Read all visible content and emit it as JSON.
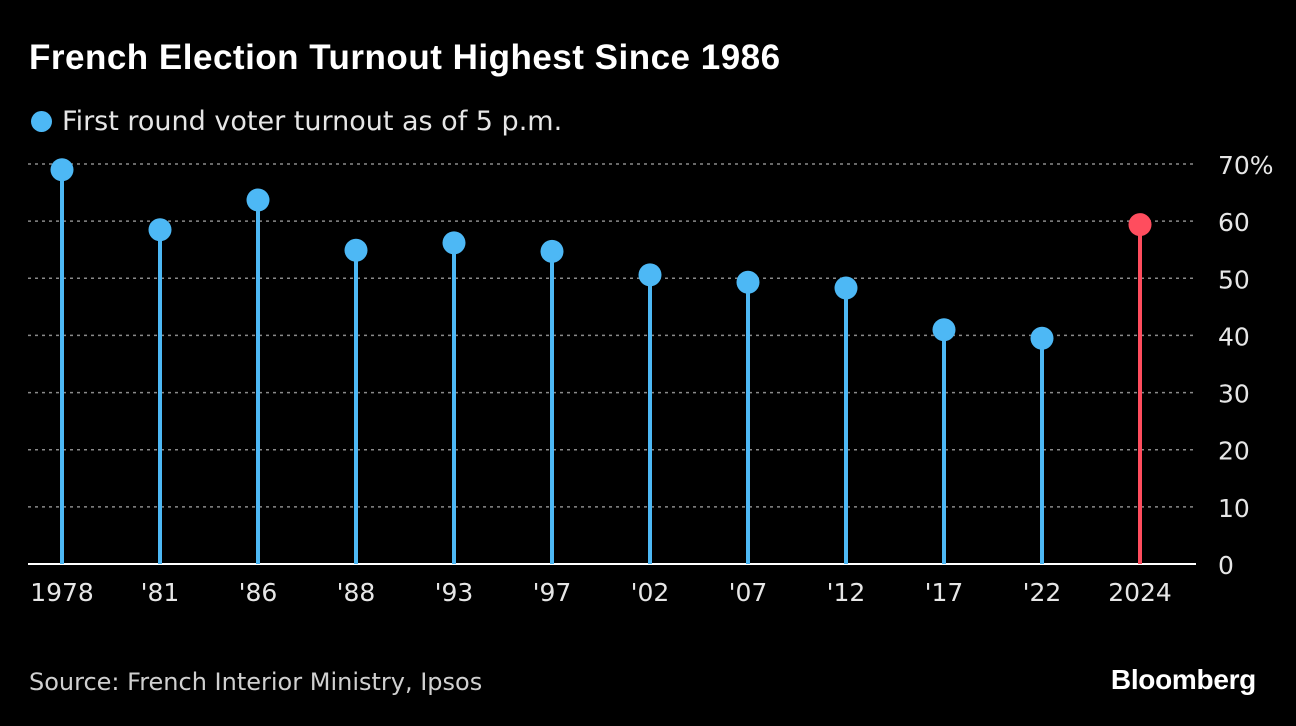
{
  "title": "French Election Turnout Highest Since 1986",
  "legend": {
    "label": "First round voter turnout as of 5 p.m."
  },
  "source": "Source: French Interior Ministry, Ipsos",
  "brand": "Bloomberg",
  "colors": {
    "series": "#4db8f5",
    "highlight": "#ff4d5e",
    "grid": "#8a8a8a",
    "axis": "#ffffff",
    "text": "#e6e6e6"
  },
  "chart_data": {
    "type": "lollipop",
    "categories": [
      "1978",
      "'81",
      "'86",
      "'88",
      "'93",
      "'97",
      "'02",
      "'07",
      "'12",
      "'17",
      "'22",
      "2024"
    ],
    "series": [
      {
        "name": "First round voter turnout as of 5 p.m.",
        "values": [
          69.0,
          58.5,
          63.7,
          54.9,
          56.2,
          54.7,
          50.6,
          49.3,
          48.3,
          41.0,
          39.5,
          59.4
        ]
      }
    ],
    "highlight_index": 11,
    "ylim": [
      0,
      70
    ],
    "yticks": [
      0,
      10,
      20,
      30,
      40,
      50,
      60,
      70
    ],
    "ytick_labels": [
      "0",
      "10",
      "20",
      "30",
      "40",
      "50",
      "60",
      "70%"
    ],
    "grid": true,
    "y_axis_position": "right"
  }
}
